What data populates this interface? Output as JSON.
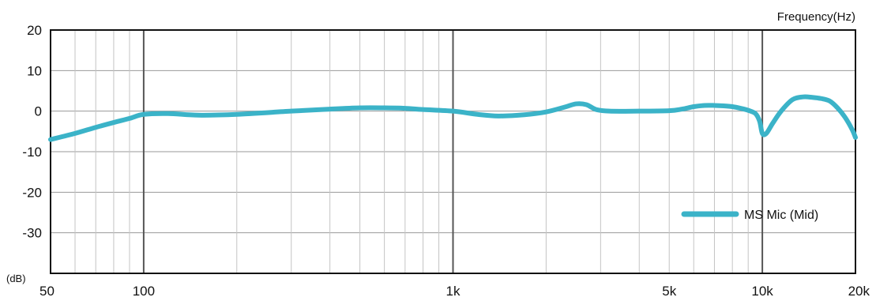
{
  "chart_data": {
    "type": "line",
    "title": "",
    "xlabel": "Frequency(Hz)",
    "ylabel": "(dB)",
    "x_scale": "log",
    "xlim": [
      50,
      20000
    ],
    "ylim": [
      -40,
      20
    ],
    "x_ticks": [
      {
        "value": 50,
        "label": "50"
      },
      {
        "value": 100,
        "label": "100"
      },
      {
        "value": 1000,
        "label": "1k"
      },
      {
        "value": 5000,
        "label": "5k"
      },
      {
        "value": 10000,
        "label": "10k"
      },
      {
        "value": 20000,
        "label": "20k"
      }
    ],
    "y_ticks": [
      {
        "value": 20,
        "label": "20"
      },
      {
        "value": 10,
        "label": "10"
      },
      {
        "value": 0,
        "label": "0"
      },
      {
        "value": -10,
        "label": "-10"
      },
      {
        "value": -20,
        "label": "-20"
      },
      {
        "value": -30,
        "label": "-30"
      }
    ],
    "major_gridlines_x": [
      100,
      1000,
      10000
    ],
    "grid": true,
    "legend": {
      "position": "bottom-right"
    },
    "series": [
      {
        "name": "MS Mic (Mid)",
        "color": "#3BB3C8",
        "x": [
          50,
          60,
          70,
          80,
          90,
          100,
          120,
          150,
          200,
          300,
          400,
          500,
          600,
          700,
          800,
          1000,
          1200,
          1400,
          1700,
          2000,
          2300,
          2500,
          2700,
          2900,
          3200,
          4000,
          5000,
          5500,
          6000,
          6500,
          7000,
          7500,
          8000,
          8500,
          9000,
          9500,
          9800,
          10000,
          10300,
          10800,
          11500,
          12500,
          13500,
          14500,
          15500,
          16500,
          17500,
          18500,
          19500,
          20000
        ],
        "y": [
          -7,
          -5.5,
          -4,
          -2.8,
          -1.8,
          -0.8,
          -0.6,
          -1,
          -0.8,
          0,
          0.5,
          0.8,
          0.8,
          0.7,
          0.4,
          0,
          -0.8,
          -1.2,
          -0.9,
          -0.2,
          1,
          1.8,
          1.6,
          0.4,
          0,
          0,
          0.1,
          0.5,
          1.1,
          1.4,
          1.4,
          1.3,
          1.1,
          0.7,
          0.2,
          -0.6,
          -2.5,
          -5.5,
          -5.5,
          -3,
          0,
          2.8,
          3.5,
          3.4,
          3.1,
          2.5,
          0.8,
          -1.5,
          -4.5,
          -6.5
        ]
      }
    ]
  }
}
